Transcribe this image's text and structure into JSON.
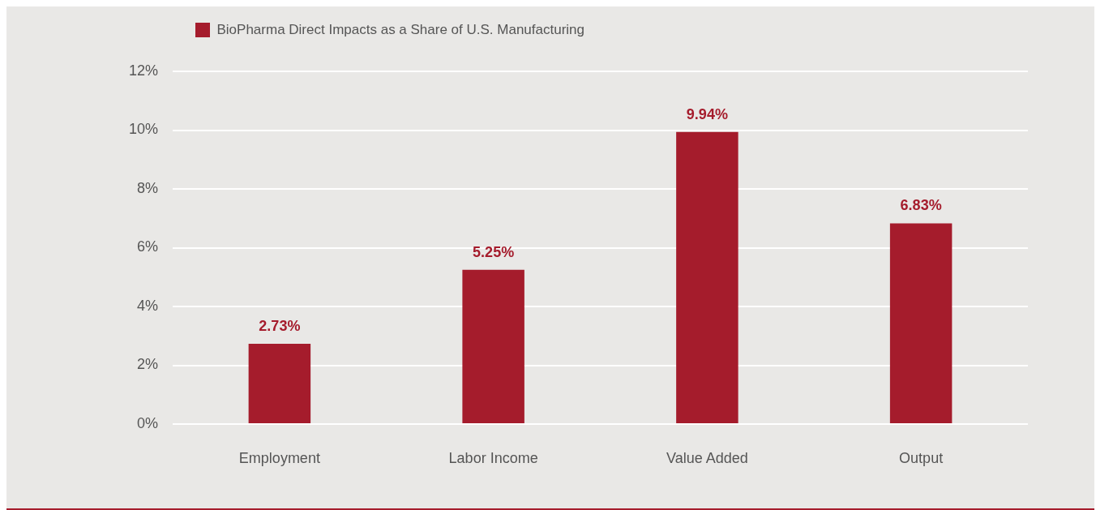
{
  "chart_data": {
    "type": "bar",
    "categories": [
      "Employment",
      "Labor Income",
      "Value Added",
      "Output"
    ],
    "series": [
      {
        "name": "BioPharma Direct Impacts as a Share of U.S. Manufacturing",
        "color": "#a51c2c",
        "values": [
          2.73,
          5.25,
          9.94,
          6.83
        ],
        "value_labels": [
          "2.73%",
          "5.25%",
          "9.94%",
          "6.83%"
        ]
      }
    ],
    "ylim": [
      0,
      12
    ],
    "yticks": [
      {
        "value": 0,
        "label": "0%"
      },
      {
        "value": 2,
        "label": "2%"
      },
      {
        "value": 4,
        "label": "4%"
      },
      {
        "value": 6,
        "label": "6%"
      },
      {
        "value": 8,
        "label": "8%"
      },
      {
        "value": 10,
        "label": "10%"
      },
      {
        "value": 12,
        "label": "12%"
      }
    ],
    "grid": "y",
    "legend": "top left"
  }
}
